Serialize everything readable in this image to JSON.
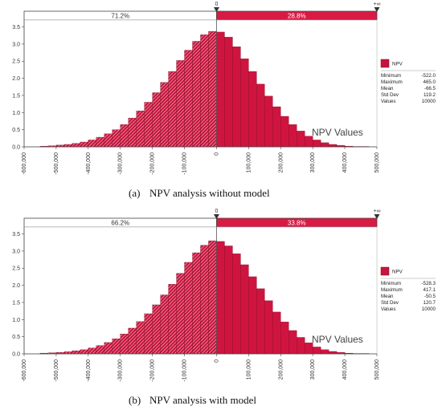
{
  "chart_data": [
    {
      "type": "bar",
      "panel_label": "(a)",
      "caption": "NPV analysis without model",
      "annotation": "NPV Values",
      "series_name": "NPV",
      "xlim": [
        -600000,
        500000
      ],
      "ylim": [
        0,
        3.7
      ],
      "x_ticks": [
        "-600,000",
        "-500,000",
        "-400,000",
        "-300,000",
        "-200,000",
        "-100,000",
        "0",
        "100,000",
        "200,000",
        "300,000",
        "400,000",
        "500,000"
      ],
      "y_ticks": [
        "0.0",
        "0.5",
        "1.0",
        "1.5",
        "2.0",
        "2.5",
        "3.0",
        "3.5"
      ],
      "bar_width": 25000,
      "bins": [
        -550000,
        -525000,
        -500000,
        -475000,
        -450000,
        -425000,
        -400000,
        -375000,
        -350000,
        -325000,
        -300000,
        -275000,
        -250000,
        -225000,
        -200000,
        -175000,
        -150000,
        -125000,
        -100000,
        -75000,
        -50000,
        -25000,
        0,
        25000,
        50000,
        75000,
        100000,
        125000,
        150000,
        175000,
        200000,
        225000,
        250000,
        275000,
        300000,
        325000,
        350000,
        375000,
        400000,
        425000,
        450000,
        475000
      ],
      "values": [
        0.02,
        0.03,
        0.05,
        0.07,
        0.1,
        0.14,
        0.2,
        0.28,
        0.38,
        0.5,
        0.65,
        0.84,
        1.05,
        1.3,
        1.58,
        1.88,
        2.2,
        2.52,
        2.82,
        3.08,
        3.27,
        3.37,
        3.35,
        3.2,
        2.92,
        2.57,
        2.2,
        1.83,
        1.48,
        1.17,
        0.89,
        0.65,
        0.46,
        0.31,
        0.2,
        0.12,
        0.07,
        0.04,
        0.02,
        0.01,
        0.01,
        0.0
      ],
      "marker_left": "0",
      "marker_right": "+∞",
      "pct_left": "71.2%",
      "pct_right": "28.8%",
      "stats": [
        {
          "label": "Minimum",
          "value": "-522.0"
        },
        {
          "label": "Maximum",
          "value": "465.0"
        },
        {
          "label": "Mean",
          "value": "-66.5"
        },
        {
          "label": "Std Dev",
          "value": "119.2"
        },
        {
          "label": "Values",
          "value": "10000"
        }
      ]
    },
    {
      "type": "bar",
      "panel_label": "(b)",
      "caption": "NPV analysis with model",
      "annotation": "NPV Values",
      "series_name": "NPV",
      "xlim": [
        -600000,
        500000
      ],
      "ylim": [
        0,
        3.7
      ],
      "x_ticks": [
        "-600,000",
        "-500,000",
        "-400,000",
        "-300,000",
        "-200,000",
        "-100,000",
        "0",
        "100,000",
        "200,000",
        "300,000",
        "400,000",
        "500,000"
      ],
      "y_ticks": [
        "0.0",
        "0.5",
        "1.0",
        "1.5",
        "2.0",
        "2.5",
        "3.0",
        "3.5"
      ],
      "bar_width": 25000,
      "bins": [
        -550000,
        -525000,
        -500000,
        -475000,
        -450000,
        -425000,
        -400000,
        -375000,
        -350000,
        -325000,
        -300000,
        -275000,
        -250000,
        -225000,
        -200000,
        -175000,
        -150000,
        -125000,
        -100000,
        -75000,
        -50000,
        -25000,
        0,
        25000,
        50000,
        75000,
        100000,
        125000,
        150000,
        175000,
        200000,
        225000,
        250000,
        275000,
        300000,
        325000,
        350000,
        375000,
        400000,
        425000,
        450000,
        475000
      ],
      "values": [
        0.02,
        0.03,
        0.04,
        0.06,
        0.09,
        0.12,
        0.17,
        0.24,
        0.33,
        0.44,
        0.58,
        0.75,
        0.94,
        1.17,
        1.43,
        1.72,
        2.03,
        2.35,
        2.67,
        2.95,
        3.17,
        3.3,
        3.28,
        3.15,
        2.92,
        2.6,
        2.25,
        1.9,
        1.55,
        1.22,
        0.93,
        0.68,
        0.48,
        0.32,
        0.2,
        0.12,
        0.07,
        0.04,
        0.02,
        0.01,
        0.01,
        0.0
      ],
      "marker_left": "0",
      "marker_right": "+∞",
      "pct_left": "66.2%",
      "pct_right": "33.8%",
      "stats": [
        {
          "label": "Minimum",
          "value": "-528.3"
        },
        {
          "label": "Maximum",
          "value": "417.1"
        },
        {
          "label": "Mean",
          "value": "-50.5"
        },
        {
          "label": "Std Dev",
          "value": "120.7"
        },
        {
          "label": "Values",
          "value": "10000"
        }
      ]
    }
  ],
  "colors": {
    "bar_fill": "#c8143c",
    "bar_hatch": "#f4c6d0",
    "bar_right": "#d01440",
    "bar_stroke": "#7a0a22",
    "bar_band": "#d91a45",
    "axis": "#444444",
    "grid_divider": "#555555"
  }
}
